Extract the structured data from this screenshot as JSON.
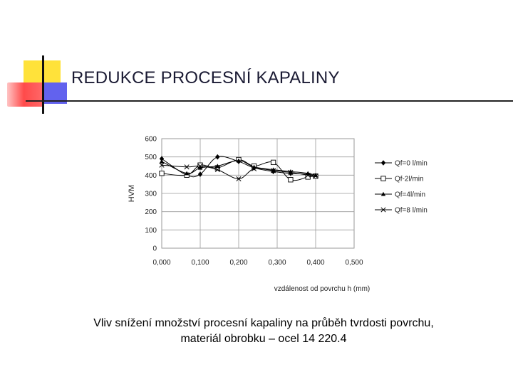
{
  "title": "REDUKCE PROCESNÍ KAPALINY",
  "caption": {
    "line1": "Vliv snížení množství procesní kapaliny na průběh tvrdosti povrchu,",
    "line2": "materiál obrobku – ocel 14 220.4"
  },
  "chart_data": {
    "type": "line",
    "title": "",
    "xlabel": "vzdálenost od povrchu h (mm)",
    "ylabel": "HVM",
    "xlim": [
      0,
      0.5
    ],
    "ylim": [
      0,
      600
    ],
    "xticks": [
      0,
      0.1,
      0.2,
      0.3,
      0.4,
      0.5
    ],
    "xtick_labels": [
      "0,000",
      "0,100",
      "0,200",
      "0,300",
      "0,400",
      "0,500"
    ],
    "yticks": [
      0,
      100,
      200,
      300,
      400,
      500,
      600
    ],
    "ytick_labels": [
      "0",
      "100",
      "200",
      "300",
      "400",
      "500",
      "600"
    ],
    "grid": true,
    "legend_position": "right",
    "series": [
      {
        "name": "Qf=0 l/min",
        "marker": "diamond",
        "x": [
          0,
          0.065,
          0.1,
          0.145,
          0.2,
          0.24,
          0.29,
          0.335,
          0.38,
          0.4
        ],
        "y": [
          490,
          400,
          405,
          500,
          475,
          440,
          420,
          410,
          405,
          395
        ]
      },
      {
        "name": "Qf-2l/min",
        "marker": "square",
        "x": [
          0,
          0.065,
          0.1,
          0.145,
          0.2,
          0.24,
          0.29,
          0.335,
          0.38,
          0.4
        ],
        "y": [
          410,
          400,
          455,
          440,
          485,
          450,
          470,
          375,
          390,
          395
        ]
      },
      {
        "name": "Qf=4l/min",
        "marker": "triangle",
        "x": [
          0,
          0.065,
          0.1,
          0.145,
          0.2,
          0.24,
          0.29,
          0.335,
          0.38,
          0.4
        ],
        "y": [
          475,
          410,
          440,
          450,
          480,
          445,
          430,
          420,
          410,
          400
        ]
      },
      {
        "name": "Qf=8 l/min",
        "marker": "x",
        "x": [
          0,
          0.065,
          0.1,
          0.145,
          0.2,
          0.24,
          0.29,
          0.335,
          0.38,
          0.4
        ],
        "y": [
          455,
          445,
          450,
          430,
          380,
          435,
          425,
          415,
          400,
          395
        ]
      }
    ]
  }
}
